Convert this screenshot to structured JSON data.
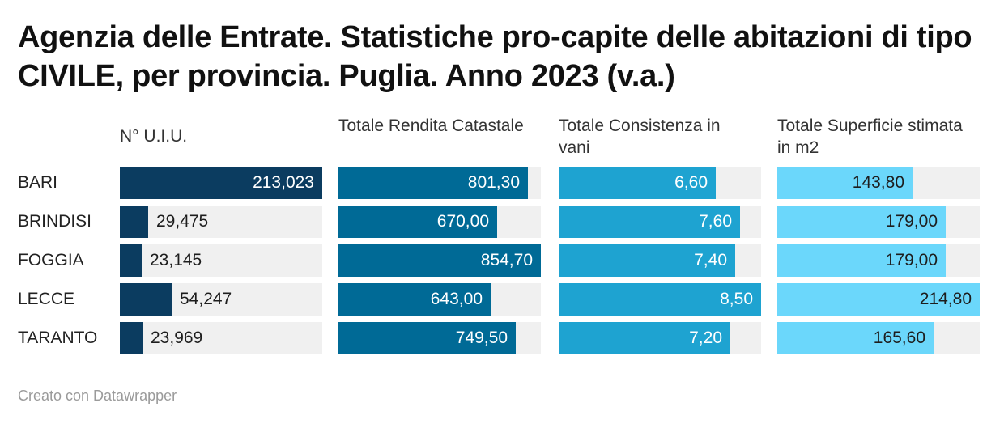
{
  "title": "Agenzia delle Entrate. Statistiche pro-capite delle abitazioni di tipo CIVILE, per provincia. Puglia. Anno 2023 (v.a.)",
  "footer": "Creato con Datawrapper",
  "chart_data": {
    "type": "bar",
    "title": "Agenzia delle Entrate. Statistiche pro-capite delle abitazioni di tipo CIVILE, per provincia. Puglia. Anno 2023 (v.a.)",
    "categories": [
      "BARI",
      "BRINDISI",
      "FOGGIA",
      "LECCE",
      "TARANTO"
    ],
    "series": [
      {
        "name": "N° U.I.U.",
        "values": [
          213023,
          29475,
          23145,
          54247,
          23969
        ],
        "labels": [
          "213,023",
          "29,475",
          "23,145",
          "54,247",
          "23,969"
        ],
        "max": 213023,
        "color": "#0b3c60",
        "text_inside": "#ffffff"
      },
      {
        "name": "Totale Rendita Catastale",
        "values": [
          801.3,
          670.0,
          854.7,
          643.0,
          749.5
        ],
        "labels": [
          "801,30",
          "670,00",
          "854,70",
          "643,00",
          "749,50"
        ],
        "max": 854.7,
        "color": "#006a96",
        "text_inside": "#ffffff"
      },
      {
        "name": "Totale Consistenza in vani",
        "values": [
          6.6,
          7.6,
          7.4,
          8.5,
          7.2
        ],
        "labels": [
          "6,60",
          "7,60",
          "7,40",
          "8,50",
          "7,20"
        ],
        "max": 8.5,
        "color": "#1ea3d1",
        "text_inside": "#ffffff"
      },
      {
        "name": "Totale Superficie stimata in m2",
        "values": [
          143.8,
          179.0,
          179.0,
          214.8,
          165.6
        ],
        "labels": [
          "143,80",
          "179,00",
          "179,00",
          "214,80",
          "165,60"
        ],
        "max": 214.8,
        "color": "#6bd7fb",
        "text_inside": "#1d1d1d"
      }
    ]
  }
}
